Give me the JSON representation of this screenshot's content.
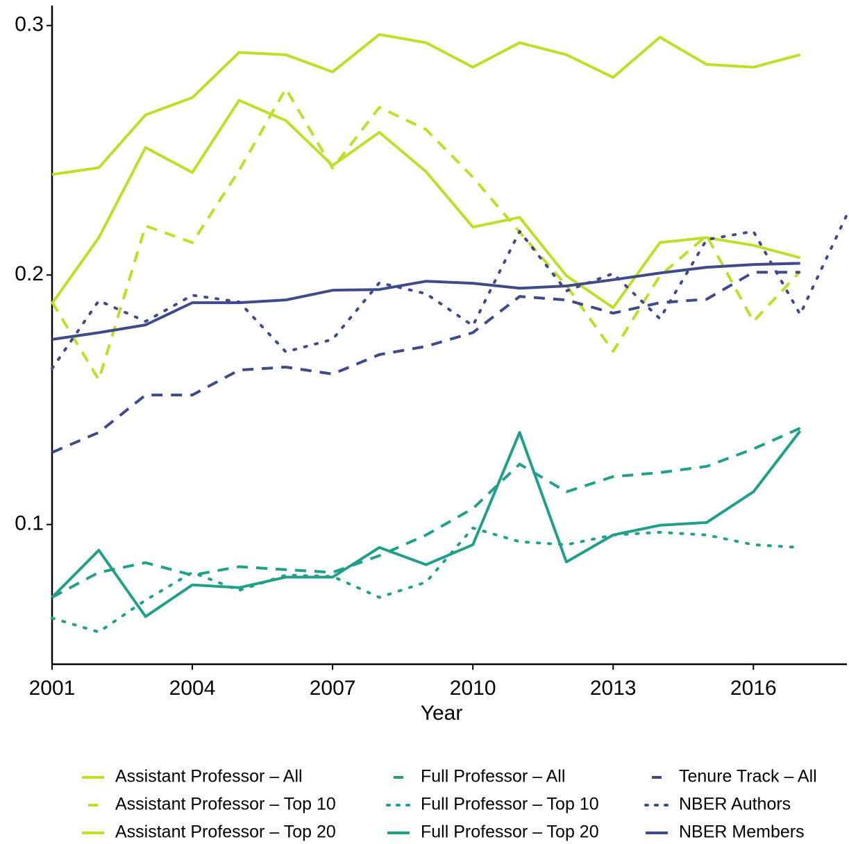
{
  "chart_data": {
    "type": "line",
    "x_label": "Year",
    "x": [
      2001,
      2002,
      2003,
      2004,
      2005,
      2006,
      2007,
      2008,
      2009,
      2010,
      2011,
      2012,
      2013,
      2014,
      2015,
      2016,
      2017,
      2018
    ],
    "xlim": [
      2001,
      2018
    ],
    "xticks": [
      2001,
      2004,
      2007,
      2010,
      2013,
      2016
    ],
    "ylim": [
      0.044,
      0.308
    ],
    "yticks": [
      0.1,
      0.2,
      0.3
    ],
    "grid": false,
    "legend": "bottom",
    "series": [
      {
        "name": "Assistant Professor – All",
        "color": "#bddf26",
        "style": "solid",
        "values": [
          0.2403,
          0.243,
          0.2642,
          0.2711,
          0.2892,
          0.2883,
          0.2814,
          0.2964,
          0.2931,
          0.2833,
          0.2931,
          0.2883,
          0.2792,
          0.2953,
          0.2844,
          0.2833,
          0.2883,
          null
        ]
      },
      {
        "name": "Assistant Professor – Top 10",
        "color": "#bddf26",
        "style": "dashed",
        "values": [
          0.1892,
          0.158,
          0.2197,
          0.213,
          0.2419,
          0.2747,
          0.2428,
          0.2672,
          0.2583,
          0.2392,
          0.2172,
          0.1958,
          0.1694,
          0.1997,
          0.2158,
          0.1814,
          0.2014,
          null
        ]
      },
      {
        "name": "Assistant Professor – Top 20",
        "color": "#bddf26",
        "style": "solid",
        "values": [
          0.1886,
          0.215,
          0.2511,
          0.2411,
          0.27,
          0.2619,
          0.2439,
          0.2572,
          0.2414,
          0.2192,
          0.2231,
          0.1997,
          0.1869,
          0.213,
          0.215,
          0.2119,
          0.2069,
          null
        ]
      },
      {
        "name": "Full Professor – All",
        "color": "#21a089",
        "style": "dashed",
        "values": [
          0.0708,
          0.0808,
          0.0847,
          0.0797,
          0.0831,
          0.0819,
          0.0808,
          0.0875,
          0.0958,
          0.1064,
          0.1242,
          0.1131,
          0.1192,
          0.1208,
          0.1233,
          0.1303,
          0.1386,
          null
        ]
      },
      {
        "name": "Full Professor – Top 10",
        "color": "#21a089",
        "style": "dotted",
        "values": [
          0.0625,
          0.0569,
          0.0697,
          0.0808,
          0.0736,
          0.0797,
          0.0792,
          0.0708,
          0.0769,
          0.0986,
          0.0931,
          0.0919,
          0.0958,
          0.0969,
          0.0958,
          0.0919,
          0.0908,
          null
        ]
      },
      {
        "name": "Full Professor – Top 20",
        "color": "#21a089",
        "style": "solid",
        "values": [
          0.0708,
          0.0897,
          0.0631,
          0.0758,
          0.0747,
          0.0789,
          0.0789,
          0.0908,
          0.0839,
          0.0919,
          0.1369,
          0.085,
          0.0958,
          0.0997,
          0.1008,
          0.1131,
          0.1375,
          null
        ]
      },
      {
        "name": "Tenure Track – All",
        "color": "#3d4b8a",
        "style": "dashed",
        "values": [
          0.1289,
          0.1369,
          0.1519,
          0.1519,
          0.1619,
          0.1631,
          0.1603,
          0.1681,
          0.1714,
          0.1769,
          0.1914,
          0.19,
          0.1847,
          0.1889,
          0.1903,
          0.2011,
          0.2011,
          null
        ]
      },
      {
        "name": "NBER Authors",
        "color": "#3d4b8a",
        "style": "dotted",
        "values": [
          0.1625,
          0.1897,
          0.1814,
          0.1919,
          0.1892,
          0.1692,
          0.1742,
          0.1969,
          0.1925,
          0.1797,
          0.2175,
          0.1936,
          0.2006,
          0.1825,
          0.2142,
          0.2175,
          0.1842,
          0.2242
        ]
      },
      {
        "name": "NBER Members",
        "color": "#3d4b8a",
        "style": "solid",
        "values": [
          0.1742,
          0.1769,
          0.18,
          0.1889,
          0.1889,
          0.19,
          0.1939,
          0.1942,
          0.1975,
          0.1967,
          0.1947,
          0.1956,
          0.1981,
          0.2008,
          0.2031,
          0.2042,
          0.2047,
          null
        ]
      }
    ]
  }
}
